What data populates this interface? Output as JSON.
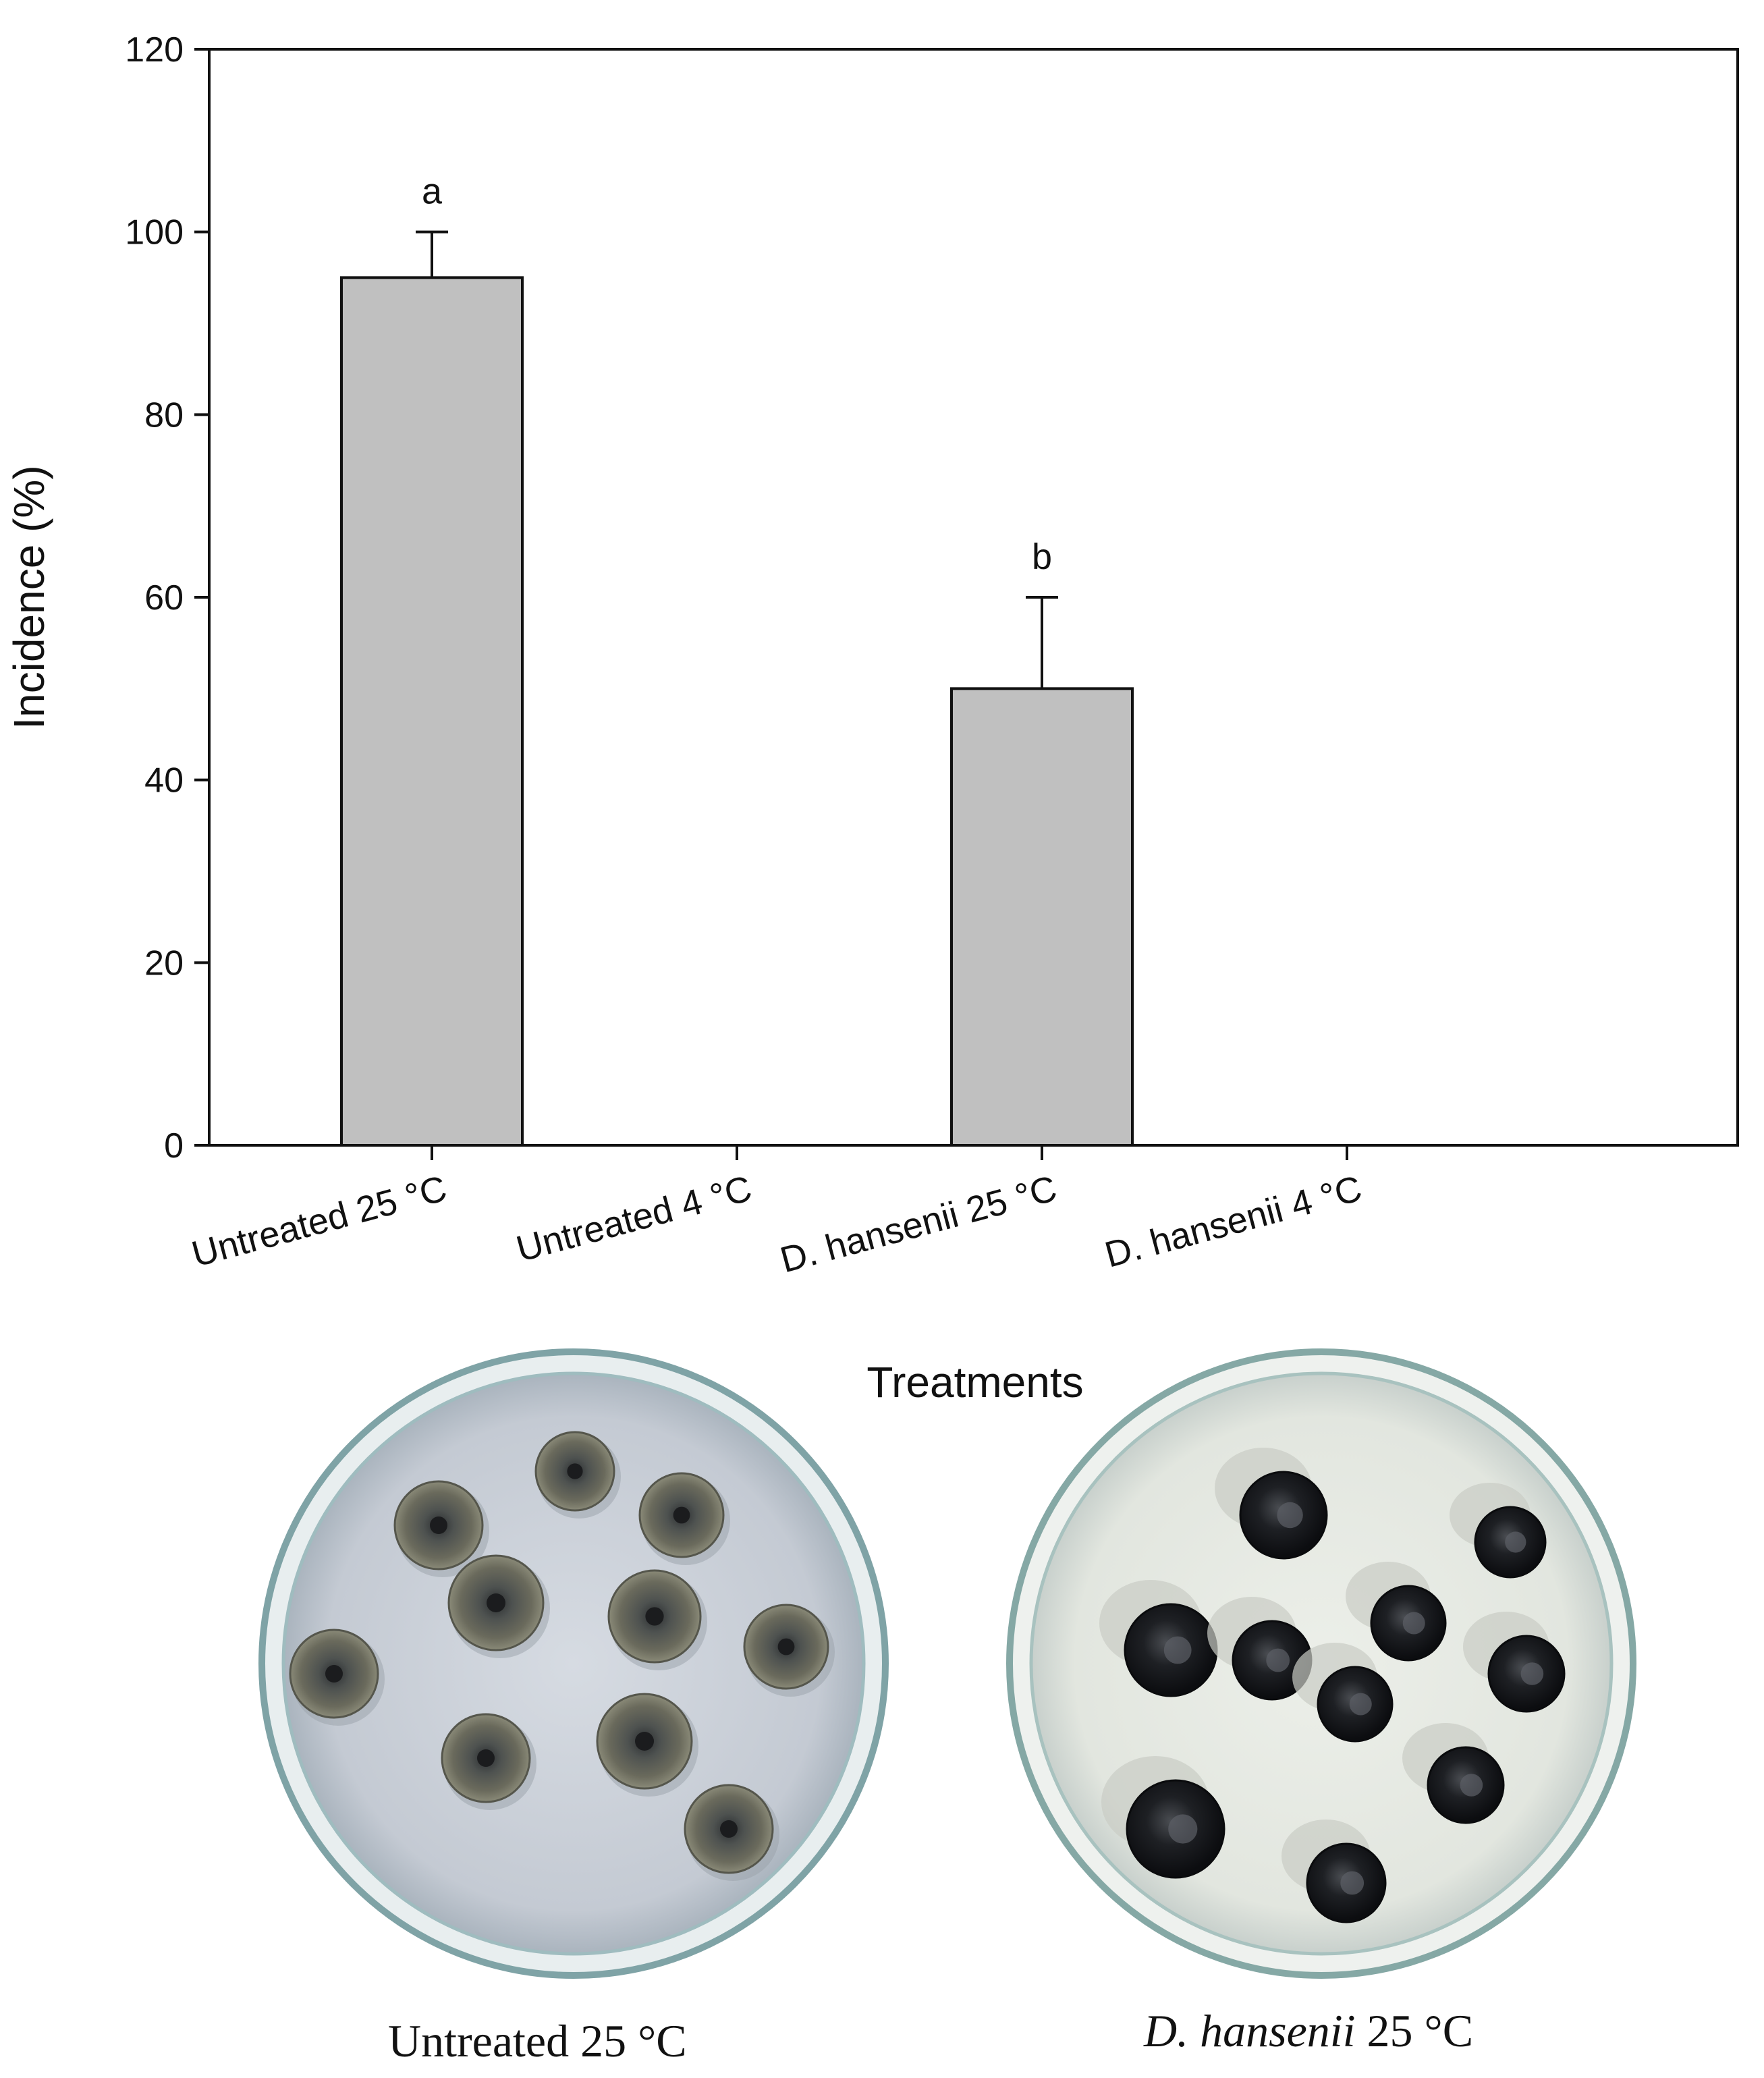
{
  "chart_data": {
    "type": "bar",
    "categories": [
      "Untreated 25 °C",
      "Untreated 4 °C",
      "D. hansenii 25 °C",
      "D. hansenii 4 °C"
    ],
    "values": [
      95,
      0,
      50,
      0
    ],
    "error_upper": [
      5,
      0,
      10,
      0
    ],
    "significance_letters": [
      "a",
      "",
      "b",
      ""
    ],
    "xlabel": "Treatments",
    "ylabel": "Incidence (%)",
    "ylim": [
      0,
      120
    ],
    "yticks": [
      "0",
      "20",
      "40",
      "60",
      "80",
      "100",
      "120"
    ],
    "bar_color": "#c0c0c0",
    "grid": false
  },
  "photos": {
    "left_caption": "Untreated 25 °C",
    "right_caption_species": "D. hansenii",
    "right_caption_temp": " 25 °C"
  }
}
